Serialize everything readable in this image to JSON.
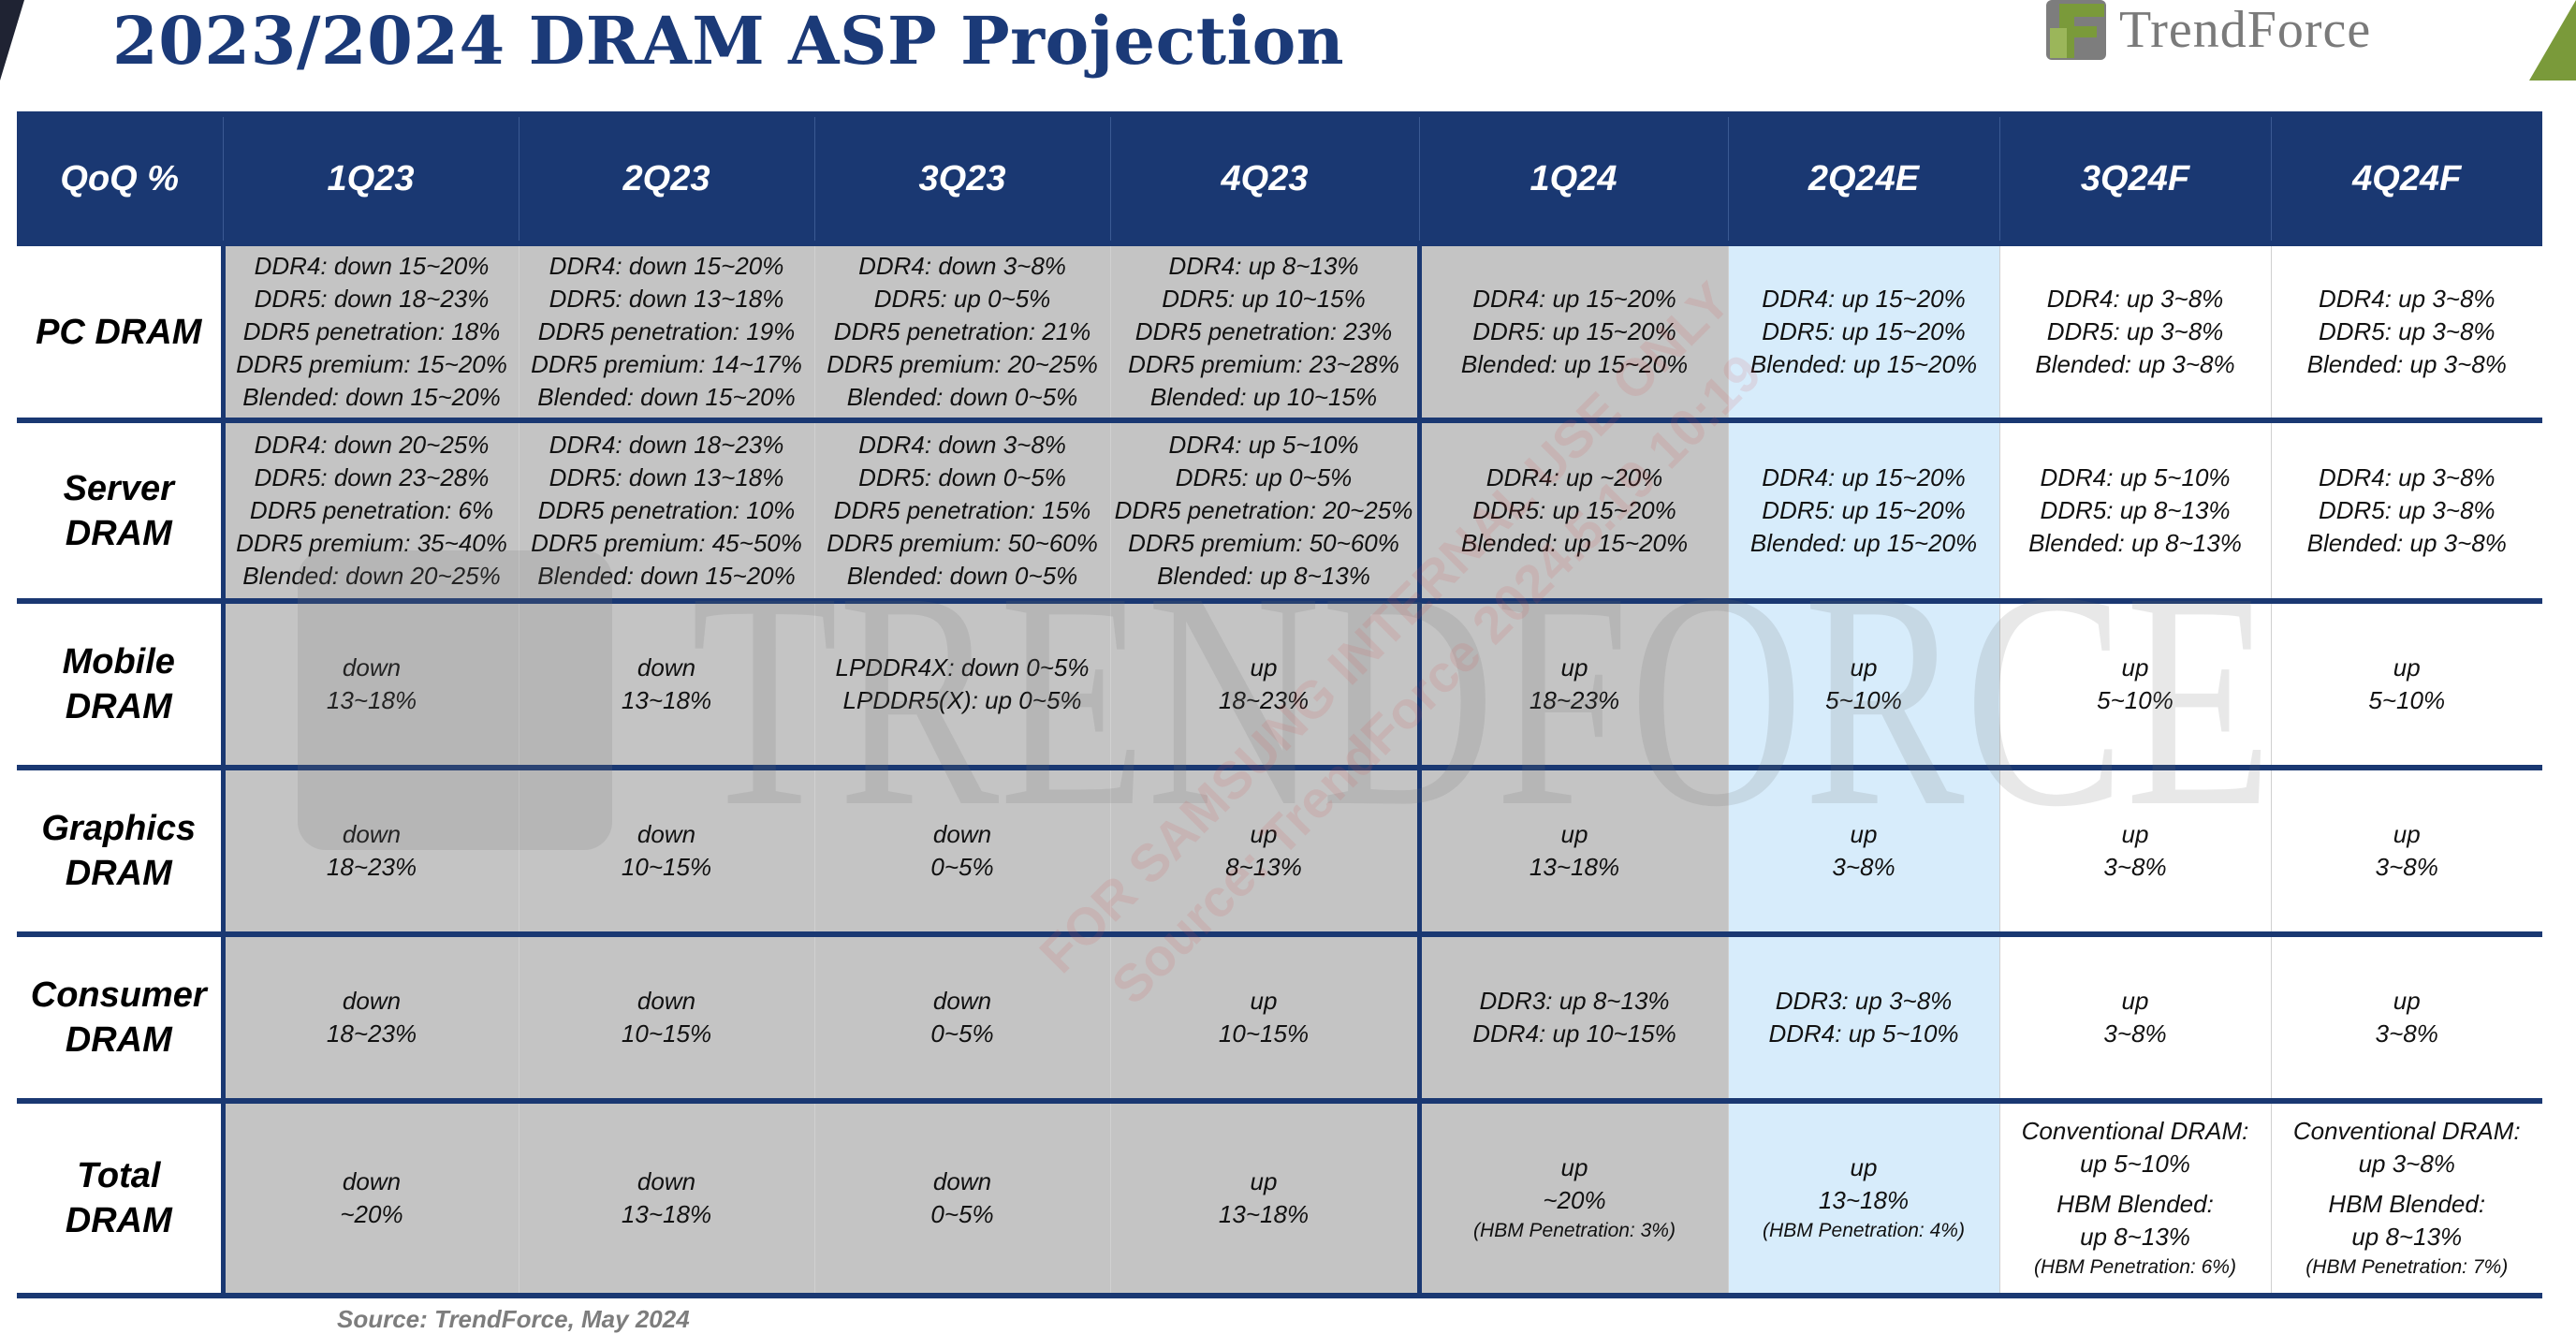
{
  "title": "2023/2024 DRAM ASP Projection",
  "logo": {
    "text": "TrendForce",
    "icon": "trendforce-logo-icon"
  },
  "watermark": {
    "text": "TRENDFORCE",
    "stamp_lines": [
      "FOR SAMSUNG INTERNAL USE ONLY",
      "Source: TrendForce 2024.5.19 10:19"
    ]
  },
  "table": {
    "corner_header": "QoQ %",
    "columns": [
      "1Q23",
      "2Q23",
      "3Q23",
      "4Q23",
      "1Q24",
      "2Q24E",
      "3Q24F",
      "4Q24F"
    ],
    "rows": [
      {
        "label": [
          "PC DRAM"
        ],
        "cells": [
          [
            "DDR4: down 15~20%",
            "DDR5: down 18~23%",
            "DDR5 penetration: 18%",
            "DDR5 premium: 15~20%",
            "Blended: down 15~20%"
          ],
          [
            "DDR4: down 15~20%",
            "DDR5: down 13~18%",
            "DDR5 penetration: 19%",
            "DDR5 premium: 14~17%",
            "Blended: down 15~20%"
          ],
          [
            "DDR4: down 3~8%",
            "DDR5: up 0~5%",
            "DDR5 penetration: 21%",
            "DDR5 premium: 20~25%",
            "Blended: down 0~5%"
          ],
          [
            "DDR4: up 8~13%",
            "DDR5:  up 10~15%",
            "DDR5 penetration: 23%",
            "DDR5 premium: 23~28%",
            "Blended: up 10~15%"
          ],
          [
            "DDR4: up 15~20%",
            "DDR5: up 15~20%",
            "Blended: up 15~20%"
          ],
          [
            "DDR4: up 15~20%",
            "DDR5: up 15~20%",
            "Blended: up 15~20%"
          ],
          [
            "DDR4: up 3~8%",
            "DDR5: up 3~8%",
            "Blended: up 3~8%"
          ],
          [
            "DDR4: up 3~8%",
            "DDR5: up 3~8%",
            "Blended: up 3~8%"
          ]
        ]
      },
      {
        "label": [
          "Server",
          "DRAM"
        ],
        "cells": [
          [
            "DDR4: down 20~25%",
            "DDR5: down 23~28%",
            "DDR5 penetration: 6%",
            "DDR5 premium: 35~40%",
            "Blended: down 20~25%"
          ],
          [
            "DDR4: down 18~23%",
            "DDR5: down 13~18%",
            "DDR5 penetration: 10%",
            "DDR5 premium: 45~50%",
            "Blended: down 15~20%"
          ],
          [
            "DDR4: down 3~8%",
            "DDR5: down 0~5%",
            "DDR5 penetration: 15%",
            "DDR5 premium: 50~60%",
            "Blended: down 0~5%"
          ],
          [
            "DDR4: up 5~10%",
            "DDR5: up 0~5%",
            "DDR5 penetration: 20~25%",
            "DDR5 premium: 50~60%",
            "Blended: up 8~13%"
          ],
          [
            "DDR4: up ~20%",
            "DDR5: up 15~20%",
            "Blended: up 15~20%"
          ],
          [
            "DDR4: up 15~20%",
            "DDR5: up 15~20%",
            "Blended: up 15~20%"
          ],
          [
            "DDR4: up 5~10%",
            "DDR5: up 8~13%",
            "Blended: up 8~13%"
          ],
          [
            "DDR4: up 3~8%",
            "DDR5: up 3~8%",
            "Blended: up 3~8%"
          ]
        ]
      },
      {
        "label": [
          "Mobile",
          "DRAM"
        ],
        "cells": [
          [
            "down",
            "13~18%"
          ],
          [
            "down",
            "13~18%"
          ],
          [
            "LPDDR4X: down 0~5%",
            "LPDDR5(X): up 0~5%"
          ],
          [
            "up",
            "18~23%"
          ],
          [
            "up",
            "18~23%"
          ],
          [
            "up",
            "5~10%"
          ],
          [
            "up",
            "5~10%"
          ],
          [
            "up",
            "5~10%"
          ]
        ]
      },
      {
        "label": [
          "Graphics",
          "DRAM"
        ],
        "cells": [
          [
            "down",
            "18~23%"
          ],
          [
            "down",
            "10~15%"
          ],
          [
            "down",
            "0~5%"
          ],
          [
            "up",
            "8~13%"
          ],
          [
            "up",
            "13~18%"
          ],
          [
            "up",
            "3~8%"
          ],
          [
            "up",
            "3~8%"
          ],
          [
            "up",
            "3~8%"
          ]
        ]
      },
      {
        "label": [
          "Consumer",
          "DRAM"
        ],
        "cells": [
          [
            "down",
            "18~23%"
          ],
          [
            "down",
            "10~15%"
          ],
          [
            "down",
            "0~5%"
          ],
          [
            "up",
            "10~15%"
          ],
          [
            "DDR3: up 8~13%",
            "DDR4: up 10~15%"
          ],
          [
            "DDR3: up 3~8%",
            "DDR4: up 5~10%"
          ],
          [
            "up",
            "3~8%"
          ],
          [
            "up",
            "3~8%"
          ]
        ]
      },
      {
        "label": [
          "Total",
          "DRAM"
        ],
        "cells": [
          [
            "down",
            "~20%"
          ],
          [
            "down",
            "13~18%"
          ],
          [
            "down",
            "0~5%"
          ],
          [
            "up",
            "13~18%"
          ],
          [
            "up",
            "~20%",
            {
              "small": "(HBM Penetration: 3%)"
            }
          ],
          [
            "up",
            "13~18%",
            {
              "small": "(HBM Penetration: 4%)"
            }
          ],
          [
            "Conventional DRAM:",
            "up 5~10%",
            {
              "gap": true
            },
            "HBM Blended:",
            "up 8~13%",
            {
              "small": "(HBM Penetration: 6%)"
            }
          ],
          [
            "Conventional DRAM:",
            "up 3~8%",
            {
              "gap": true
            },
            "HBM Blended:",
            "up 8~13%",
            {
              "small": "(HBM Penetration: 7%)"
            }
          ]
        ]
      }
    ]
  },
  "source": "Source: TrendForce, May 2024",
  "colors": {
    "header_navy": "#1a3872",
    "title_navy": "#1b3a78",
    "actual_gray": "#c4c4c4",
    "estimate_blue": "#d7ecfb",
    "forecast_white": "#ffffff",
    "logo_green": "#7a9a3a"
  }
}
